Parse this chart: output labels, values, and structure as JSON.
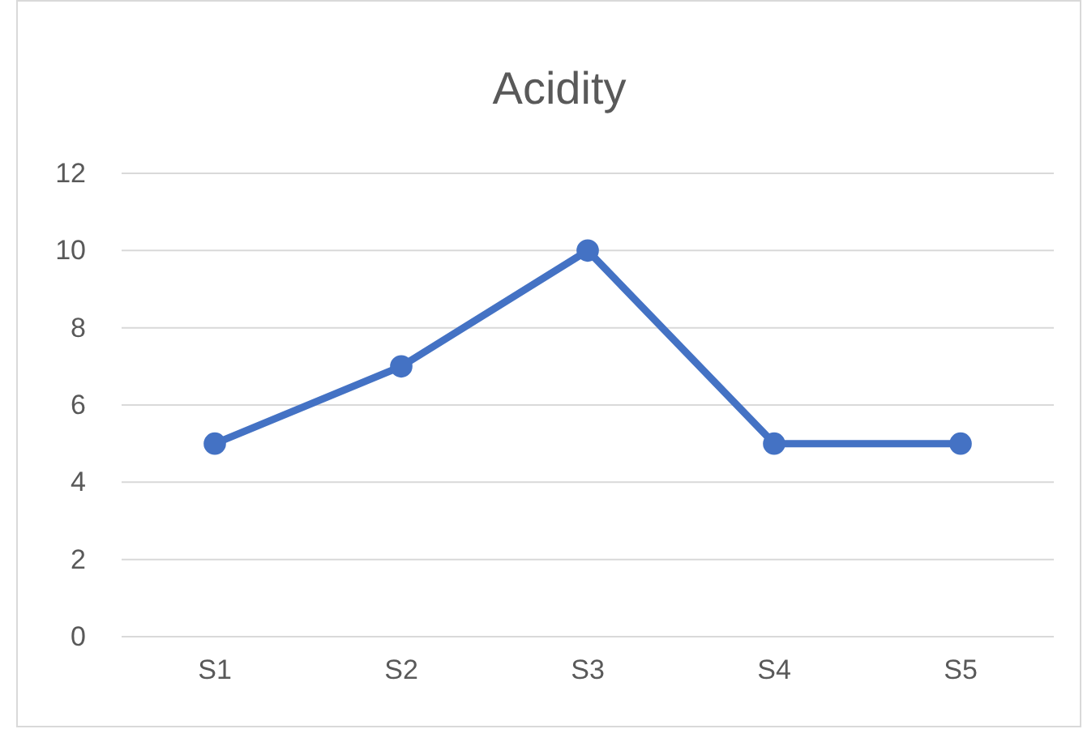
{
  "chart_data": {
    "type": "line",
    "title": "Acidity",
    "categories": [
      "S1",
      "S2",
      "S3",
      "S4",
      "S5"
    ],
    "series": [
      {
        "color": "#4472c4",
        "values": [
          5,
          7,
          10,
          5,
          5
        ]
      }
    ],
    "ylim": [
      0,
      12
    ],
    "yticks": [
      0,
      2,
      4,
      6,
      8,
      10,
      12
    ],
    "grid": "y",
    "marker": "circle",
    "line_style": "solid"
  }
}
